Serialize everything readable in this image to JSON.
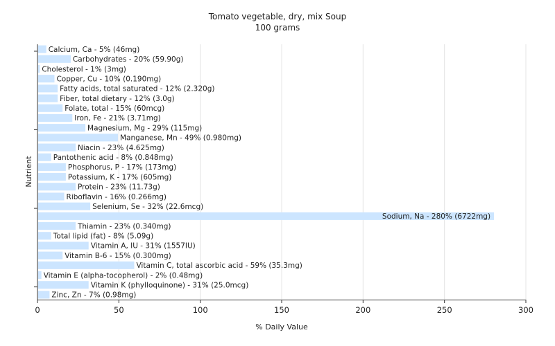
{
  "chart_data": {
    "type": "bar",
    "orientation": "horizontal",
    "title": "Tomato vegetable, dry, mix Soup",
    "subtitle": "100 grams",
    "xlabel": "% Daily Value",
    "ylabel": "Nutrient",
    "xlim": [
      0,
      300
    ],
    "xticks": [
      0,
      50,
      100,
      150,
      200,
      250,
      300
    ],
    "grid": true,
    "bar_color": "#cce5ff",
    "bars": [
      {
        "name": "Calcium, Ca",
        "value": 5,
        "label": "Calcium, Ca - 5% (46mg)"
      },
      {
        "name": "Carbohydrates",
        "value": 20,
        "label": "Carbohydrates - 20% (59.90g)"
      },
      {
        "name": "Cholesterol",
        "value": 1,
        "label": "Cholesterol - 1% (3mg)"
      },
      {
        "name": "Copper, Cu",
        "value": 10,
        "label": "Copper, Cu - 10% (0.190mg)"
      },
      {
        "name": "Fatty acids, total saturated",
        "value": 12,
        "label": "Fatty acids, total saturated - 12% (2.320g)"
      },
      {
        "name": "Fiber, total dietary",
        "value": 12,
        "label": "Fiber, total dietary - 12% (3.0g)"
      },
      {
        "name": "Folate, total",
        "value": 15,
        "label": "Folate, total - 15% (60mcg)"
      },
      {
        "name": "Iron, Fe",
        "value": 21,
        "label": "Iron, Fe - 21% (3.71mg)"
      },
      {
        "name": "Magnesium, Mg",
        "value": 29,
        "label": "Magnesium, Mg - 29% (115mg)"
      },
      {
        "name": "Manganese, Mn",
        "value": 49,
        "label": "Manganese, Mn - 49% (0.980mg)"
      },
      {
        "name": "Niacin",
        "value": 23,
        "label": "Niacin - 23% (4.625mg)"
      },
      {
        "name": "Pantothenic acid",
        "value": 8,
        "label": "Pantothenic acid - 8% (0.848mg)"
      },
      {
        "name": "Phosphorus, P",
        "value": 17,
        "label": "Phosphorus, P - 17% (173mg)"
      },
      {
        "name": "Potassium, K",
        "value": 17,
        "label": "Potassium, K - 17% (605mg)"
      },
      {
        "name": "Protein",
        "value": 23,
        "label": "Protein - 23% (11.73g)"
      },
      {
        "name": "Riboflavin",
        "value": 16,
        "label": "Riboflavin - 16% (0.266mg)"
      },
      {
        "name": "Selenium, Se",
        "value": 32,
        "label": "Selenium, Se - 32% (22.6mcg)"
      },
      {
        "name": "Sodium, Na",
        "value": 280,
        "label": "Sodium, Na - 280% (6722mg)"
      },
      {
        "name": "Thiamin",
        "value": 23,
        "label": "Thiamin - 23% (0.340mg)"
      },
      {
        "name": "Total lipid (fat)",
        "value": 8,
        "label": "Total lipid (fat) - 8% (5.09g)"
      },
      {
        "name": "Vitamin A, IU",
        "value": 31,
        "label": "Vitamin A, IU - 31% (1557IU)"
      },
      {
        "name": "Vitamin B-6",
        "value": 15,
        "label": "Vitamin B-6 - 15% (0.300mg)"
      },
      {
        "name": "Vitamin C, total ascorbic acid",
        "value": 59,
        "label": "Vitamin C, total ascorbic acid - 59% (35.3mg)"
      },
      {
        "name": "Vitamin E (alpha-tocopherol)",
        "value": 2,
        "label": "Vitamin E (alpha-tocopherol) - 2% (0.48mg)"
      },
      {
        "name": "Vitamin K (phylloquinone)",
        "value": 31,
        "label": "Vitamin K (phylloquinone) - 31% (25.0mcg)"
      },
      {
        "name": "Zinc, Zn",
        "value": 7,
        "label": "Zinc, Zn - 7% (0.98mg)"
      }
    ]
  }
}
